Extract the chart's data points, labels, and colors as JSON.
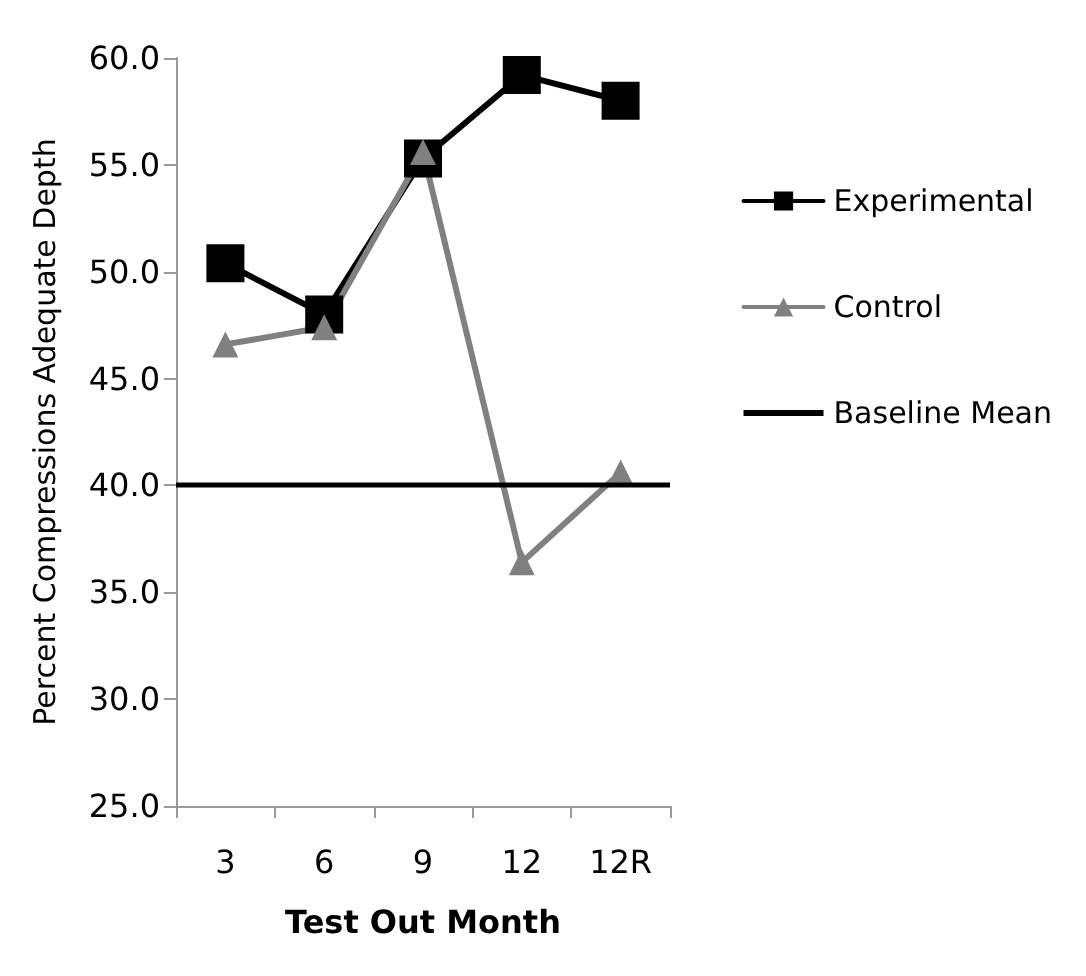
{
  "chart_data": {
    "type": "line",
    "xlabel": "Test Out Month",
    "ylabel": "Percent Compressions Adequate Depth",
    "categories": [
      "3",
      "6",
      "9",
      "12",
      "12R"
    ],
    "series": [
      {
        "name": "Experimental",
        "color": "#000000",
        "marker": "square",
        "values": [
          50.4,
          48.0,
          55.3,
          59.2,
          58.0
        ]
      },
      {
        "name": "Control",
        "color": "#808080",
        "marker": "triangle",
        "values": [
          46.6,
          47.4,
          55.6,
          36.4,
          40.6
        ]
      }
    ],
    "ref_lines": [
      {
        "axis": "y",
        "value": 40,
        "label": "Baseline Mean",
        "color": "#000000",
        "line_style": "solid"
      }
    ],
    "ylim": [
      25,
      60
    ],
    "yticks": [
      {
        "value": 25,
        "label": "25.0"
      },
      {
        "value": 30,
        "label": "30.0"
      },
      {
        "value": 35,
        "label": "35.0"
      },
      {
        "value": 40,
        "label": "40.0"
      },
      {
        "value": 45,
        "label": "45.0"
      },
      {
        "value": 50,
        "label": "50.0"
      },
      {
        "value": 55,
        "label": "55.0"
      },
      {
        "value": 60,
        "label": "60.0"
      }
    ],
    "grid": false,
    "legend": "right",
    "line_style": "solid"
  }
}
